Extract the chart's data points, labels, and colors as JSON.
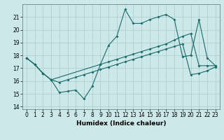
{
  "xlabel": "Humidex (Indice chaleur)",
  "bg_color": "#cce8e8",
  "grid_color": "#b0d0d0",
  "line_color": "#1a6b6b",
  "xlim": [
    -0.5,
    23.5
  ],
  "ylim": [
    13.8,
    22.0
  ],
  "yticks": [
    14,
    15,
    16,
    17,
    18,
    19,
    20,
    21
  ],
  "xticks": [
    0,
    1,
    2,
    3,
    4,
    5,
    6,
    7,
    8,
    9,
    10,
    11,
    12,
    13,
    14,
    15,
    16,
    17,
    18,
    19,
    20,
    21,
    22,
    23
  ],
  "line1_x": [
    0,
    1,
    2,
    3,
    4,
    5,
    6,
    7,
    8,
    9,
    10,
    11,
    12,
    13,
    14,
    15,
    16,
    17,
    18,
    19,
    20,
    21,
    22,
    23
  ],
  "line1_y": [
    17.8,
    17.3,
    16.6,
    16.1,
    15.1,
    15.2,
    15.3,
    14.6,
    15.6,
    17.3,
    18.8,
    19.5,
    21.6,
    20.5,
    20.5,
    20.8,
    21.0,
    21.2,
    20.8,
    17.9,
    18.0,
    20.8,
    17.8,
    17.2
  ],
  "line2_x": [
    0,
    1,
    2,
    3,
    9,
    10,
    11,
    12,
    13,
    14,
    15,
    16,
    17,
    18,
    19,
    20,
    21,
    22,
    23
  ],
  "line2_y": [
    17.8,
    17.3,
    16.6,
    16.1,
    17.3,
    17.5,
    17.7,
    17.9,
    18.1,
    18.3,
    18.5,
    18.7,
    18.9,
    19.2,
    19.5,
    19.7,
    17.2,
    17.2,
    17.2
  ],
  "line3_x": [
    0,
    1,
    2,
    3,
    4,
    5,
    6,
    7,
    8,
    9,
    10,
    11,
    12,
    13,
    14,
    15,
    16,
    17,
    18,
    19,
    20,
    21,
    22,
    23
  ],
  "line3_y": [
    17.8,
    17.3,
    16.6,
    16.1,
    15.9,
    16.1,
    16.3,
    16.5,
    16.7,
    16.9,
    17.1,
    17.3,
    17.5,
    17.7,
    17.9,
    18.1,
    18.3,
    18.5,
    18.7,
    18.9,
    16.5,
    16.6,
    16.8,
    17.1
  ]
}
